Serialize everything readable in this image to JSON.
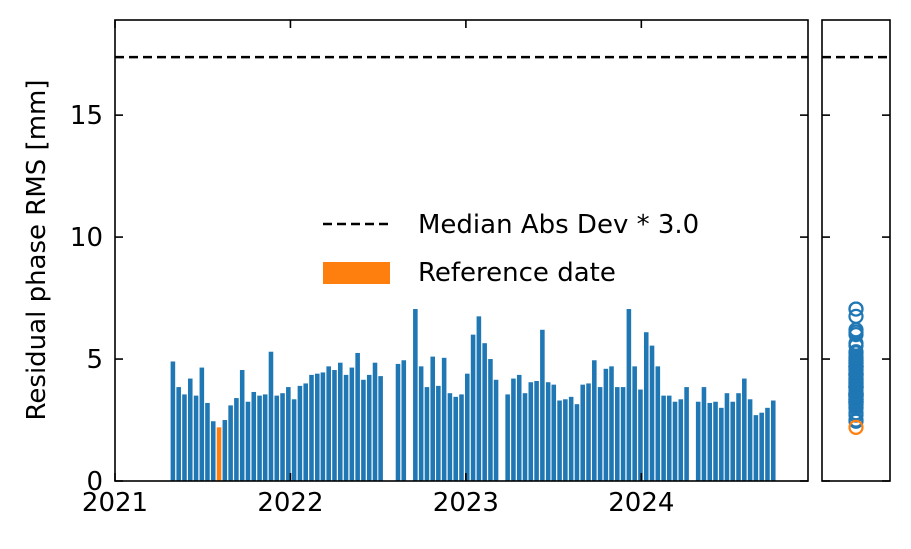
{
  "chart_data": {
    "type": "bar",
    "ylabel": "Residual phase RMS [mm]",
    "xlim": [
      2021,
      2024.95
    ],
    "ylim": [
      0,
      18.9
    ],
    "xticks": [
      2021,
      2022,
      2023,
      2024
    ],
    "yticks": [
      0,
      5,
      10,
      15
    ],
    "threshold": {
      "name": "Median Abs Dev * 3.0",
      "value": 17.38,
      "color": "#000000"
    },
    "series": [
      {
        "color": "#1f77b4",
        "x": [
          2021.33,
          2021.363,
          2021.396,
          2021.429,
          2021.462,
          2021.495,
          2021.527,
          2021.56,
          2021.626,
          2021.659,
          2021.692,
          2021.725,
          2021.758,
          2021.791,
          2021.824,
          2021.856,
          2021.889,
          2021.922,
          2021.955,
          2021.988,
          2022.021,
          2022.054,
          2022.087,
          2022.12,
          2022.153,
          2022.185,
          2022.218,
          2022.251,
          2022.284,
          2022.317,
          2022.35,
          2022.383,
          2022.416,
          2022.449,
          2022.482,
          2022.514,
          2022.613,
          2022.646,
          2022.712,
          2022.745,
          2022.778,
          2022.811,
          2022.843,
          2022.876,
          2022.909,
          2022.942,
          2022.975,
          2023.008,
          2023.041,
          2023.074,
          2023.107,
          2023.14,
          2023.172,
          2023.238,
          2023.271,
          2023.304,
          2023.337,
          2023.37,
          2023.403,
          2023.436,
          2023.469,
          2023.501,
          2023.534,
          2023.567,
          2023.6,
          2023.633,
          2023.666,
          2023.699,
          2023.732,
          2023.765,
          2023.798,
          2023.83,
          2023.863,
          2023.896,
          2023.929,
          2023.962,
          2023.995,
          2024.028,
          2024.061,
          2024.094,
          2024.127,
          2024.159,
          2024.192,
          2024.225,
          2024.258,
          2024.324,
          2024.357,
          2024.39,
          2024.423,
          2024.456,
          2024.488,
          2024.521,
          2024.554,
          2024.587,
          2024.62,
          2024.653,
          2024.686,
          2024.719,
          2024.752
        ],
        "values": [
          4.9,
          3.85,
          3.55,
          4.2,
          3.5,
          4.65,
          3.2,
          2.45,
          2.5,
          3.1,
          3.4,
          4.55,
          3.25,
          3.65,
          3.5,
          3.55,
          5.3,
          3.5,
          3.6,
          3.85,
          3.35,
          3.9,
          4.0,
          4.35,
          4.4,
          4.45,
          4.7,
          4.55,
          4.85,
          4.35,
          4.65,
          5.25,
          4.15,
          4.35,
          4.85,
          4.3,
          4.8,
          4.95,
          7.05,
          4.7,
          3.85,
          5.1,
          3.9,
          5.05,
          3.6,
          3.45,
          3.55,
          4.4,
          6.0,
          6.75,
          5.65,
          5.0,
          4.15,
          3.55,
          4.2,
          4.35,
          3.6,
          4.05,
          4.1,
          6.2,
          4.05,
          3.95,
          3.3,
          3.35,
          3.45,
          3.15,
          3.95,
          4.0,
          4.95,
          3.85,
          4.6,
          4.7,
          3.85,
          3.85,
          7.05,
          4.7,
          3.75,
          6.1,
          5.55,
          4.7,
          3.5,
          3.5,
          3.25,
          3.35,
          3.85,
          3.25,
          3.85,
          3.2,
          3.25,
          3.0,
          3.6,
          3.25,
          3.6,
          4.2,
          3.35,
          2.7,
          2.8,
          3.0,
          3.3
        ]
      },
      {
        "name": "Reference date",
        "color": "#ff7f0e",
        "x": [
          2021.593
        ],
        "values": [
          2.2
        ]
      }
    ]
  }
}
